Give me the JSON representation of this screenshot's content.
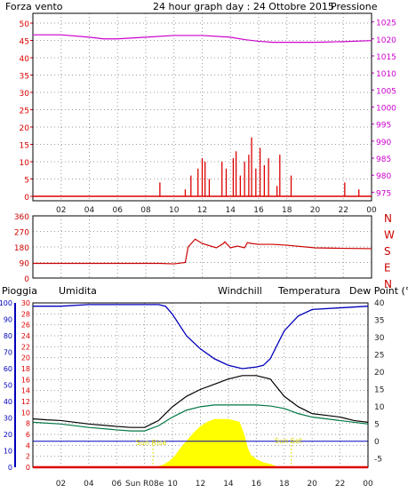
{
  "colors": {
    "wind": "#dd0000",
    "pressure": "#cc00cc",
    "title": "#2222aa",
    "direction": "#cc0000",
    "rain": "#dd0000",
    "humidity": "#0000bb",
    "windchill": "#ff8800",
    "temperature": "#000000",
    "dewpoint": "#007744",
    "sun": "#ffff00",
    "grid": "#9a9a9a",
    "frame": "#000000"
  },
  "chart_data": [
    {
      "type": "line",
      "title": "24 hour graph day : 24 Ottobre 2015",
      "left_label": "Forza vento",
      "right_label": "Pressione",
      "xlim": [
        0,
        24
      ],
      "x_ticks": [
        "02",
        "04",
        "06",
        "08",
        "10",
        "12",
        "14",
        "16",
        "18",
        "20",
        "22",
        "00"
      ],
      "y_left_lim": [
        0,
        50
      ],
      "y_left_ticks": [
        "0",
        "5",
        "10",
        "15",
        "20",
        "25",
        "30",
        "35",
        "40",
        "45",
        "50"
      ],
      "y_right_lim": [
        972.5,
        1027.5
      ],
      "y_right_ticks": [
        "975",
        "980",
        "985",
        "990",
        "995",
        "1000",
        "1005",
        "1010",
        "1015",
        "1020",
        "1025"
      ],
      "grid": true,
      "series": [
        {
          "name": "Pressione",
          "axis": "right",
          "x": [
            0,
            2,
            4,
            5,
            6,
            8,
            10,
            12,
            14,
            15,
            16,
            17,
            18,
            20,
            22,
            24
          ],
          "values": [
            1021.2,
            1021.2,
            1020.5,
            1020.0,
            1020.0,
            1020.5,
            1021.0,
            1021.0,
            1020.5,
            1019.8,
            1019.3,
            1019.0,
            1019.0,
            1019.0,
            1019.2,
            1019.5
          ]
        },
        {
          "name": "Forza vento",
          "axis": "left",
          "x": [
            9.0,
            10.8,
            11.2,
            11.7,
            12.0,
            12.2,
            12.5,
            13.4,
            13.7,
            14.2,
            14.4,
            14.7,
            15.0,
            15.3,
            15.5,
            15.8,
            16.1,
            16.4,
            16.7,
            17.3,
            17.5,
            18.3,
            22.1,
            23.1
          ],
          "values": [
            4,
            2,
            6,
            8,
            11,
            10,
            5,
            10,
            8,
            11,
            13,
            6,
            10,
            12,
            17,
            8,
            14,
            9,
            11,
            3,
            12,
            6,
            4,
            2
          ]
        }
      ]
    },
    {
      "type": "line",
      "title": "",
      "right_labels": [
        "N",
        "W",
        "S",
        "E",
        "N"
      ],
      "xlim": [
        0,
        24
      ],
      "y_lim": [
        0,
        360
      ],
      "y_ticks": [
        "0",
        "90",
        "180",
        "270",
        "360"
      ],
      "grid": true,
      "series": [
        {
          "name": "",
          "x": [
            0,
            2,
            4,
            6,
            8,
            9,
            10,
            10.8,
            11.0,
            11.5,
            12.0,
            13.0,
            13.5,
            13.6,
            14.0,
            14.5,
            15.0,
            15.2,
            15.5,
            16.0,
            17.0,
            18.0,
            20.0,
            22.0,
            24.0
          ],
          "values": [
            85,
            85,
            85,
            85,
            85,
            85,
            82,
            90,
            180,
            225,
            200,
            175,
            200,
            210,
            175,
            185,
            175,
            205,
            200,
            195,
            195,
            190,
            175,
            172,
            170
          ]
        }
      ]
    },
    {
      "type": "line",
      "title": "",
      "header_labels": [
        "Pioggia",
        "Umidita",
        "Windchill",
        "Temperatura",
        "Dew Point (°C"
      ],
      "annotations": [
        "Sun Rise",
        "Sun Set"
      ],
      "xlim": [
        0,
        24
      ],
      "x_ticks": [
        "02",
        "04",
        "06",
        "Sun R08e",
        "10",
        "12",
        "14",
        "16",
        "18",
        "20",
        "22",
        "00"
      ],
      "y_far_left_lim": [
        0,
        100
      ],
      "y_far_left_ticks": [
        "0",
        "10",
        "20",
        "30",
        "40",
        "50",
        "60",
        "70",
        "80",
        "90",
        "100"
      ],
      "y_left_lim": [
        0,
        30
      ],
      "y_left_ticks": [
        "0",
        "2",
        "4",
        "6",
        "8",
        "10",
        "12",
        "14",
        "16",
        "18",
        "20",
        "22",
        "24",
        "26",
        "28",
        "30"
      ],
      "y_right_lim": [
        -7.5,
        40
      ],
      "y_right_ticks": [
        "-5",
        "0",
        "5",
        "10",
        "15",
        "20",
        "25",
        "30",
        "35",
        "40"
      ],
      "grid": true,
      "series": [
        {
          "name": "Umidita",
          "x": [
            0,
            2,
            4,
            6,
            8,
            9,
            9.5,
            10,
            11,
            12,
            13,
            14,
            15,
            16,
            16.5,
            17,
            18,
            19,
            20,
            22,
            24
          ],
          "values": [
            98,
            98,
            99,
            99,
            99,
            99,
            98,
            93,
            80,
            72,
            66,
            62,
            60,
            61,
            62,
            66,
            83,
            92,
            96,
            97,
            98
          ]
        },
        {
          "name": "Temperatura",
          "x": [
            0,
            1,
            2,
            4,
            6,
            7,
            8,
            9,
            10,
            11,
            12,
            13,
            14,
            15,
            16,
            17,
            18,
            19,
            20,
            21,
            22,
            23,
            24
          ],
          "values": [
            6.5,
            6.2,
            6.0,
            5.0,
            4.3,
            4.0,
            4.0,
            6.0,
            10.0,
            13.0,
            15.0,
            16.5,
            18.0,
            19.0,
            19.0,
            18.0,
            13.0,
            10.0,
            8.0,
            7.5,
            7.0,
            6.0,
            5.5
          ]
        },
        {
          "name": "Dew Point (°C",
          "x": [
            0,
            2,
            4,
            6,
            7,
            8,
            9,
            10,
            11,
            12,
            13,
            14,
            15,
            16,
            17,
            18,
            19,
            20,
            22,
            24
          ],
          "values": [
            5.5,
            5.0,
            4.0,
            3.3,
            3.0,
            3.0,
            4.5,
            7.0,
            9.0,
            10.0,
            10.5,
            10.5,
            10.5,
            10.5,
            10.2,
            9.5,
            8.0,
            7.0,
            6.0,
            5.0
          ]
        },
        {
          "name": "Sun",
          "x": [
            0,
            8.6,
            9.3,
            9.8,
            10.2,
            10.5,
            11.0,
            11.5,
            12.0,
            12.5,
            13.0,
            14.0,
            14.8,
            15.0,
            15.2,
            15.4,
            15.6,
            16.0,
            16.5,
            17.0,
            17.5,
            24
          ],
          "values": [
            0,
            0,
            0.4,
            1.2,
            2.2,
            3.3,
            4.8,
            6.3,
            7.5,
            8.3,
            8.8,
            8.8,
            8.3,
            7.0,
            5.5,
            3.5,
            2.3,
            1.5,
            0.9,
            0.6,
            0.1,
            0
          ]
        },
        {
          "name": "Pioggia",
          "x": [
            0,
            24
          ],
          "values": [
            0,
            0
          ]
        }
      ]
    }
  ]
}
